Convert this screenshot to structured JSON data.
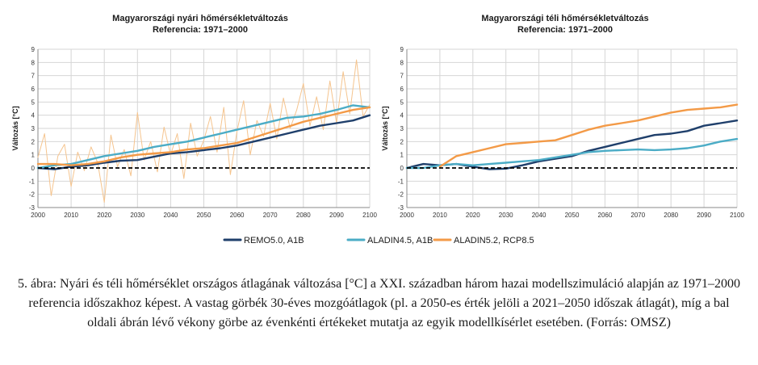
{
  "chart_data": [
    {
      "type": "line",
      "title": "Magyarországi nyári hőmérsékletváltozás",
      "subtitle": "Referencia: 1971–2000",
      "xlabel": "",
      "ylabel": "Változás [°C]",
      "xlim": [
        2000,
        2100
      ],
      "ylim": [
        -3,
        9
      ],
      "xticks": [
        2000,
        2010,
        2020,
        2030,
        2040,
        2050,
        2060,
        2070,
        2080,
        2090,
        2100
      ],
      "yticks": [
        -3,
        -2,
        -1,
        0,
        1,
        2,
        3,
        4,
        5,
        6,
        7,
        8,
        9
      ],
      "grid": true,
      "zero_line": "dashed",
      "series": [
        {
          "name": "REMO5.0, A1B",
          "color": "#1f3f6b",
          "x": [
            2000,
            2005,
            2010,
            2015,
            2020,
            2025,
            2030,
            2035,
            2040,
            2045,
            2050,
            2055,
            2060,
            2065,
            2070,
            2075,
            2080,
            2085,
            2090,
            2095,
            2100
          ],
          "y": [
            0.0,
            -0.1,
            0.1,
            0.2,
            0.4,
            0.55,
            0.6,
            0.85,
            1.1,
            1.2,
            1.35,
            1.5,
            1.7,
            2.0,
            2.3,
            2.6,
            2.9,
            3.2,
            3.4,
            3.6,
            4.0
          ]
        },
        {
          "name": "ALADIN4.5, A1B",
          "color": "#4bacc6",
          "x": [
            2000,
            2005,
            2010,
            2015,
            2020,
            2025,
            2030,
            2035,
            2040,
            2045,
            2050,
            2055,
            2060,
            2065,
            2070,
            2075,
            2080,
            2085,
            2090,
            2095,
            2100
          ],
          "y": [
            0.0,
            0.2,
            0.3,
            0.6,
            0.9,
            1.1,
            1.3,
            1.6,
            1.8,
            2.0,
            2.3,
            2.6,
            2.9,
            3.2,
            3.5,
            3.8,
            3.9,
            4.1,
            4.4,
            4.75,
            4.6
          ]
        },
        {
          "name": "ALADIN5.2, RCP8.5",
          "color": "#f39a47",
          "x": [
            2000,
            2005,
            2010,
            2015,
            2020,
            2025,
            2030,
            2035,
            2040,
            2045,
            2050,
            2055,
            2060,
            2065,
            2070,
            2075,
            2080,
            2085,
            2090,
            2095,
            2100
          ],
          "y": [
            0.3,
            0.3,
            0.2,
            0.3,
            0.5,
            0.8,
            1.0,
            1.1,
            1.2,
            1.4,
            1.5,
            1.7,
            1.9,
            2.3,
            2.7,
            3.1,
            3.5,
            3.8,
            4.1,
            4.4,
            4.6
          ]
        },
        {
          "name": "",
          "color": "#f5c48e",
          "thin": true,
          "x": [
            2000,
            2002,
            2004,
            2006,
            2008,
            2010,
            2012,
            2014,
            2016,
            2018,
            2020,
            2022,
            2024,
            2026,
            2028,
            2030,
            2032,
            2034,
            2036,
            2038,
            2040,
            2042,
            2044,
            2046,
            2048,
            2050,
            2052,
            2054,
            2056,
            2058,
            2060,
            2062,
            2064,
            2066,
            2068,
            2070,
            2072,
            2074,
            2076,
            2078,
            2080,
            2082,
            2084,
            2086,
            2088,
            2090,
            2092,
            2094,
            2096,
            2098,
            2100
          ],
          "y": [
            0.8,
            2.6,
            -2.1,
            0.9,
            1.8,
            -1.4,
            1.2,
            -0.2,
            1.6,
            0.4,
            -2.6,
            2.5,
            0.1,
            1.4,
            -0.6,
            4.2,
            0.6,
            2.0,
            -0.3,
            3.1,
            1.0,
            2.6,
            -0.8,
            3.4,
            0.9,
            2.1,
            3.9,
            1.2,
            4.6,
            -0.5,
            2.8,
            5.1,
            1.0,
            3.6,
            2.4,
            4.9,
            2.2,
            5.3,
            3.0,
            4.4,
            6.4,
            3.2,
            5.4,
            2.9,
            6.6,
            3.4,
            7.3,
            4.1,
            8.2,
            3.9,
            4.8
          ]
        }
      ]
    },
    {
      "type": "line",
      "title": "Magyarországi téli hőmérsékletváltozás",
      "subtitle": "Referencia: 1971–2000",
      "xlabel": "",
      "ylabel": "Változás [°C]",
      "xlim": [
        2000,
        2100
      ],
      "ylim": [
        -3,
        9
      ],
      "xticks": [
        2000,
        2010,
        2020,
        2030,
        2040,
        2050,
        2060,
        2070,
        2080,
        2090,
        2100
      ],
      "yticks": [
        -3,
        -2,
        -1,
        0,
        1,
        2,
        3,
        4,
        5,
        6,
        7,
        8,
        9
      ],
      "grid": true,
      "zero_line": "dashed",
      "series": [
        {
          "name": "REMO5.0, A1B",
          "color": "#1f3f6b",
          "x": [
            2000,
            2005,
            2010,
            2015,
            2020,
            2025,
            2030,
            2035,
            2040,
            2045,
            2050,
            2055,
            2060,
            2065,
            2070,
            2075,
            2080,
            2085,
            2090,
            2095,
            2100
          ],
          "y": [
            0.0,
            0.3,
            0.2,
            0.3,
            0.1,
            -0.1,
            -0.05,
            0.2,
            0.5,
            0.7,
            0.9,
            1.3,
            1.6,
            1.9,
            2.2,
            2.5,
            2.6,
            2.8,
            3.2,
            3.4,
            3.6
          ]
        },
        {
          "name": "ALADIN4.5, A1B",
          "color": "#4bacc6",
          "x": [
            2000,
            2005,
            2010,
            2015,
            2020,
            2025,
            2030,
            2035,
            2040,
            2045,
            2050,
            2055,
            2060,
            2065,
            2070,
            2075,
            2080,
            2085,
            2090,
            2095,
            2100
          ],
          "y": [
            0.0,
            0.0,
            0.2,
            0.3,
            0.2,
            0.3,
            0.4,
            0.5,
            0.6,
            0.8,
            1.0,
            1.2,
            1.3,
            1.35,
            1.4,
            1.35,
            1.4,
            1.5,
            1.7,
            2.0,
            2.2
          ]
        },
        {
          "name": "ALADIN5.2, RCP8.5",
          "color": "#f39a47",
          "x": [
            2010,
            2015,
            2020,
            2025,
            2030,
            2035,
            2040,
            2045,
            2050,
            2055,
            2060,
            2065,
            2070,
            2075,
            2080,
            2085,
            2090,
            2095,
            2100
          ],
          "y": [
            0.1,
            0.9,
            1.2,
            1.5,
            1.8,
            1.9,
            2.0,
            2.1,
            2.5,
            2.9,
            3.2,
            3.4,
            3.6,
            3.9,
            4.2,
            4.4,
            4.5,
            4.6,
            4.8
          ]
        }
      ]
    }
  ],
  "legend": {
    "items": [
      {
        "label": "REMO5.0, A1B",
        "color": "#1f3f6b"
      },
      {
        "label": "ALADIN4.5, A1B",
        "color": "#4bacc6"
      },
      {
        "label": "ALADIN5.2, RCP8.5",
        "color": "#f39a47"
      }
    ]
  },
  "caption": "5. ábra: Nyári és téli hőmérséklet országos átlagának változása [°C] a XXI. században három hazai modellszimuláció alapján az 1971–2000 referencia időszakhoz képest. A vastag görbék 30-éves mozgóátlagok (pl. a 2050-es érték jelöli a 2021–2050 időszak átlagát), míg a bal oldali ábrán lévő vékony görbe az évenkénti értékeket mutatja az egyik modellkísérlet esetében. (Forrás: OMSZ)"
}
